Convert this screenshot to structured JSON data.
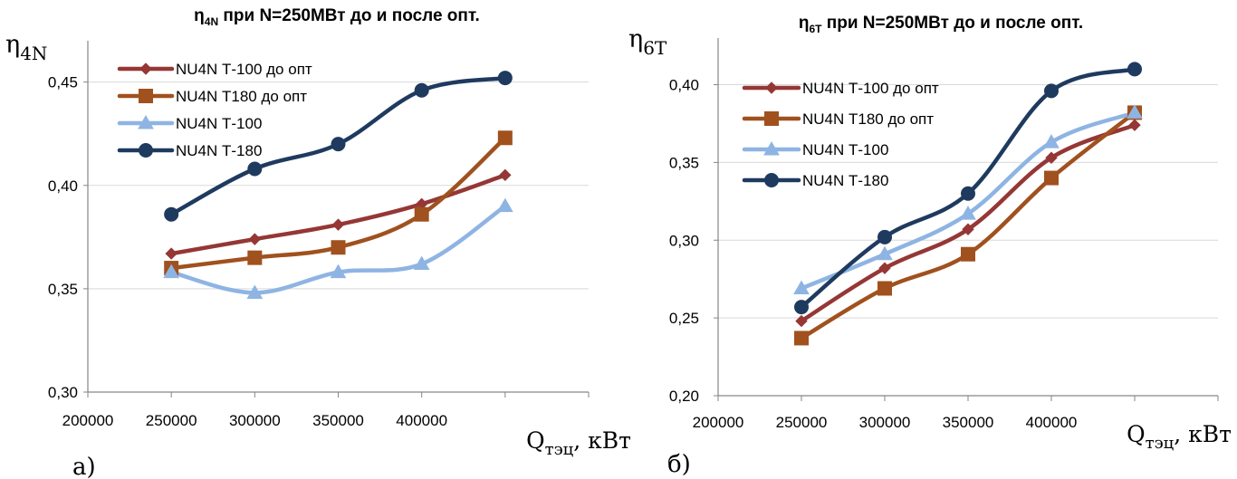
{
  "chart_data": [
    {
      "type": "line",
      "panel_label": "а)",
      "title": {
        "main": "η",
        "sub": "4N",
        "rest": " при N=250МВт до и после опт."
      },
      "ylabel": {
        "main": "η",
        "sub": "4N"
      },
      "xlabel": {
        "main": "Q",
        "sub": "тэц",
        "rest": ", кВт"
      },
      "xlim": [
        200000,
        500000
      ],
      "ylim": [
        0.3,
        0.47
      ],
      "x_ticks": [
        200000,
        250000,
        300000,
        350000,
        400000
      ],
      "x_tick_labels": [
        "200000",
        "250000",
        "300000",
        "350000",
        "400000"
      ],
      "y_ticks": [
        0.3,
        0.35,
        0.4,
        0.45
      ],
      "y_tick_labels": [
        "0,30",
        "0,35",
        "0,40",
        "0,45"
      ],
      "grid": "horizontal",
      "legend_position": "top-left",
      "x": [
        250000,
        300000,
        350000,
        400000,
        450000
      ],
      "series": [
        {
          "name": "NU4N Т-100 до опт",
          "color": "#953735",
          "marker": "diamond",
          "values": [
            0.367,
            0.374,
            0.381,
            0.391,
            0.405
          ]
        },
        {
          "name": "NU4N Т180 до опт",
          "color": "#A0511E",
          "marker": "square",
          "values": [
            0.36,
            0.365,
            0.37,
            0.386,
            0.423
          ]
        },
        {
          "name": "NU4N Т-100",
          "color": "#8EB4E3",
          "marker": "triangle",
          "values": [
            0.358,
            0.348,
            0.358,
            0.362,
            0.39
          ]
        },
        {
          "name": "NU4N Т-180",
          "color": "#1F3A5F",
          "marker": "circle",
          "values": [
            0.386,
            0.408,
            0.42,
            0.446,
            0.452
          ]
        }
      ]
    },
    {
      "type": "line",
      "panel_label": "б)",
      "title": {
        "main": "η",
        "sub": "6Т",
        "rest": " при N=250МВт до и после опт."
      },
      "ylabel": {
        "main": "η",
        "sub": "6Т"
      },
      "xlabel": {
        "main": "Q",
        "sub": "тэц",
        "rest": ", кВт"
      },
      "xlim": [
        200000,
        500000
      ],
      "ylim": [
        0.2,
        0.43
      ],
      "x_ticks": [
        200000,
        250000,
        300000,
        350000,
        400000
      ],
      "x_tick_labels": [
        "200000",
        "250000",
        "300000",
        "350000",
        "400000"
      ],
      "y_ticks": [
        0.2,
        0.25,
        0.3,
        0.35,
        0.4
      ],
      "y_tick_labels": [
        "0,20",
        "0,25",
        "0,30",
        "0,35",
        "0,40"
      ],
      "grid": "horizontal",
      "legend_position": "top-left",
      "x": [
        250000,
        300000,
        350000,
        400000,
        450000
      ],
      "series": [
        {
          "name": "NU4N Т-100 до опт",
          "color": "#953735",
          "marker": "diamond",
          "values": [
            0.248,
            0.282,
            0.307,
            0.353,
            0.374
          ]
        },
        {
          "name": "NU4N Т180 до опт",
          "color": "#A0511E",
          "marker": "square",
          "values": [
            0.237,
            0.269,
            0.291,
            0.34,
            0.382
          ]
        },
        {
          "name": "NU4N Т-100",
          "color": "#8EB4E3",
          "marker": "triangle",
          "values": [
            0.269,
            0.291,
            0.317,
            0.363,
            0.382
          ]
        },
        {
          "name": "NU4N Т-180",
          "color": "#1F3A5F",
          "marker": "circle",
          "values": [
            0.257,
            0.302,
            0.33,
            0.396,
            0.41
          ]
        }
      ]
    }
  ]
}
